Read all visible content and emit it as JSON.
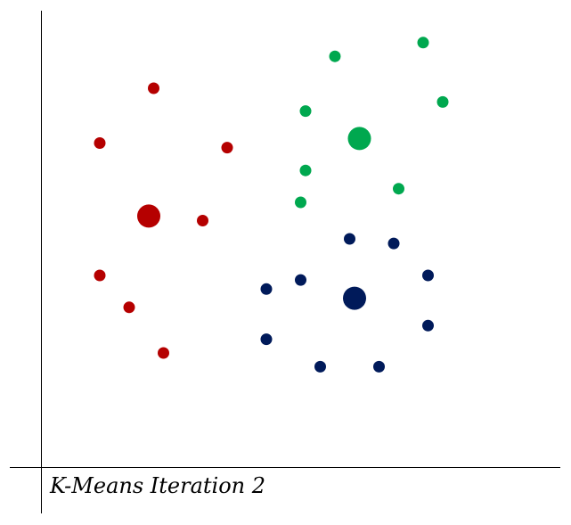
{
  "chart_data": {
    "type": "scatter",
    "title": "K-Means Iteration 2",
    "xlabel": "",
    "ylabel": "",
    "xlim": [
      0,
      10
    ],
    "ylim": [
      0,
      10
    ],
    "grid": false,
    "clusters": [
      {
        "color": "#b50000",
        "centroid": [
          2.2,
          5.5
        ],
        "points": [
          [
            2.3,
            8.3
          ],
          [
            1.2,
            7.1
          ],
          [
            3.8,
            7.0
          ],
          [
            3.3,
            5.4
          ],
          [
            1.2,
            4.2
          ],
          [
            1.8,
            3.5
          ],
          [
            2.5,
            2.5
          ]
        ]
      },
      {
        "color": "#00a84f",
        "centroid": [
          6.5,
          7.2
        ],
        "points": [
          [
            6.0,
            9.0
          ],
          [
            7.8,
            9.3
          ],
          [
            5.4,
            7.8
          ],
          [
            8.2,
            8.0
          ],
          [
            5.4,
            6.5
          ],
          [
            7.3,
            6.1
          ],
          [
            5.3,
            5.8
          ]
        ]
      },
      {
        "color": "#001a5a",
        "centroid": [
          6.4,
          3.7
        ],
        "points": [
          [
            6.3,
            5.0
          ],
          [
            7.2,
            4.9
          ],
          [
            4.6,
            3.9
          ],
          [
            5.3,
            4.1
          ],
          [
            7.9,
            4.2
          ],
          [
            4.6,
            2.8
          ],
          [
            5.7,
            2.2
          ],
          [
            6.9,
            2.2
          ],
          [
            7.9,
            3.1
          ]
        ]
      }
    ]
  }
}
